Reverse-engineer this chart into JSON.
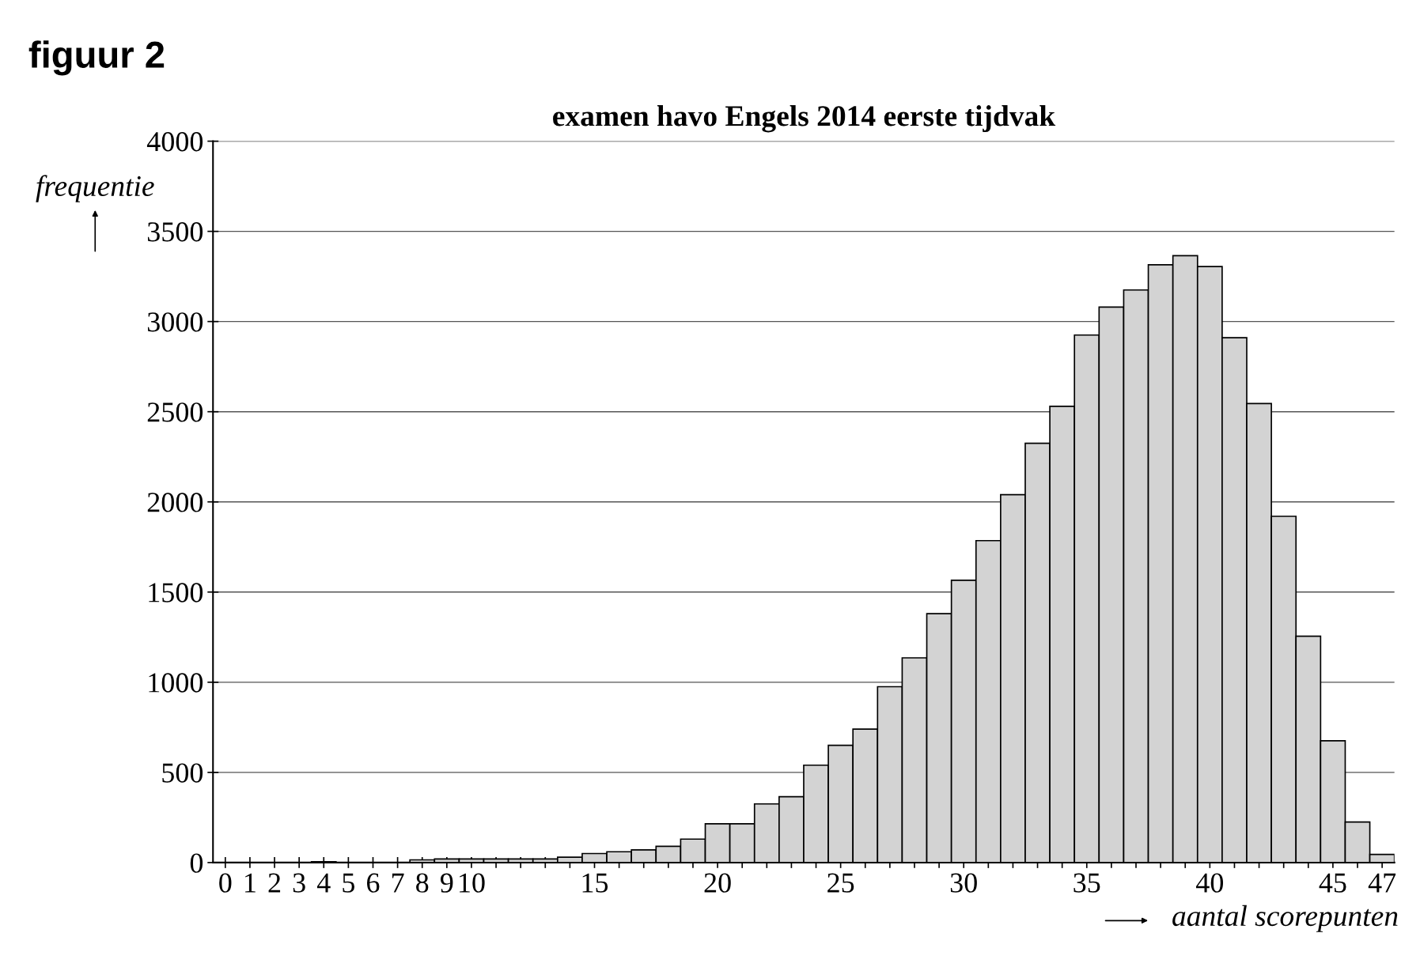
{
  "chart_data": {
    "type": "histogram",
    "title": "examen havo Engels 2014 eerste tijdvak",
    "xlabel": "aantal scorepunten",
    "ylabel": "frequentie",
    "annotations": [
      "figuur 2"
    ],
    "bins": [
      -0.5,
      0.5,
      1.5,
      2.5,
      3.5,
      4.5,
      5.5,
      6.5,
      7.5,
      8.5,
      9.5,
      10.5,
      11.5,
      12.5,
      13.5,
      14.5,
      15.5,
      16.5,
      17.5,
      18.5,
      19.5,
      20.5,
      21.5,
      22.5,
      23.5,
      24.5,
      25.5,
      26.5,
      27.5,
      28.5,
      29.5,
      30.5,
      31.5,
      32.5,
      33.5,
      34.5,
      35.5,
      36.5,
      37.5,
      38.5,
      39.5,
      40.5,
      41.5,
      42.5,
      43.5,
      44.5,
      45.5,
      46.5,
      47.5
    ],
    "values": [
      0,
      0,
      0,
      0,
      5,
      0,
      0,
      0,
      15,
      20,
      20,
      20,
      20,
      20,
      30,
      50,
      60,
      70,
      90,
      130,
      215,
      215,
      325,
      365,
      540,
      650,
      740,
      975,
      1135,
      1380,
      1565,
      1785,
      2040,
      2325,
      2530,
      2925,
      3080,
      3175,
      3315,
      3365,
      3305,
      2910,
      2545,
      1920,
      1255,
      675,
      225,
      45
    ],
    "color": "#d3d3d3",
    "xlim": [
      -0.5,
      47.5
    ],
    "xticks": [
      0,
      1,
      2,
      3,
      4,
      5,
      6,
      7,
      8,
      9,
      10,
      {
        "value": 11,
        "label": null
      },
      {
        "value": 12,
        "label": null
      },
      {
        "value": 13,
        "label": null
      },
      {
        "value": 14,
        "label": null
      },
      15,
      {
        "value": 16,
        "label": null
      },
      {
        "value": 17,
        "label": null
      },
      {
        "value": 18,
        "label": null
      },
      {
        "value": 19,
        "label": null
      },
      20,
      {
        "value": 21,
        "label": null
      },
      {
        "value": 22,
        "label": null
      },
      {
        "value": 23,
        "label": null
      },
      {
        "value": 24,
        "label": null
      },
      25,
      {
        "value": 26,
        "label": null
      },
      {
        "value": 27,
        "label": null
      },
      {
        "value": 28,
        "label": null
      },
      {
        "value": 29,
        "label": null
      },
      30,
      {
        "value": 31,
        "label": null
      },
      {
        "value": 32,
        "label": null
      },
      {
        "value": 33,
        "label": null
      },
      {
        "value": 34,
        "label": null
      },
      35,
      {
        "value": 36,
        "label": null
      },
      {
        "value": 37,
        "label": null
      },
      {
        "value": 38,
        "label": null
      },
      {
        "value": 39,
        "label": null
      },
      40,
      {
        "value": 41,
        "label": null
      },
      {
        "value": 42,
        "label": null
      },
      {
        "value": 43,
        "label": null
      },
      {
        "value": 44,
        "label": null
      },
      45,
      {
        "value": 46,
        "label": null
      },
      47
    ],
    "ylim": [
      0,
      4000
    ],
    "yticks": [
      0,
      500,
      1000,
      1500,
      2000,
      2500,
      3000,
      3500,
      4000
    ],
    "grid": "y"
  }
}
